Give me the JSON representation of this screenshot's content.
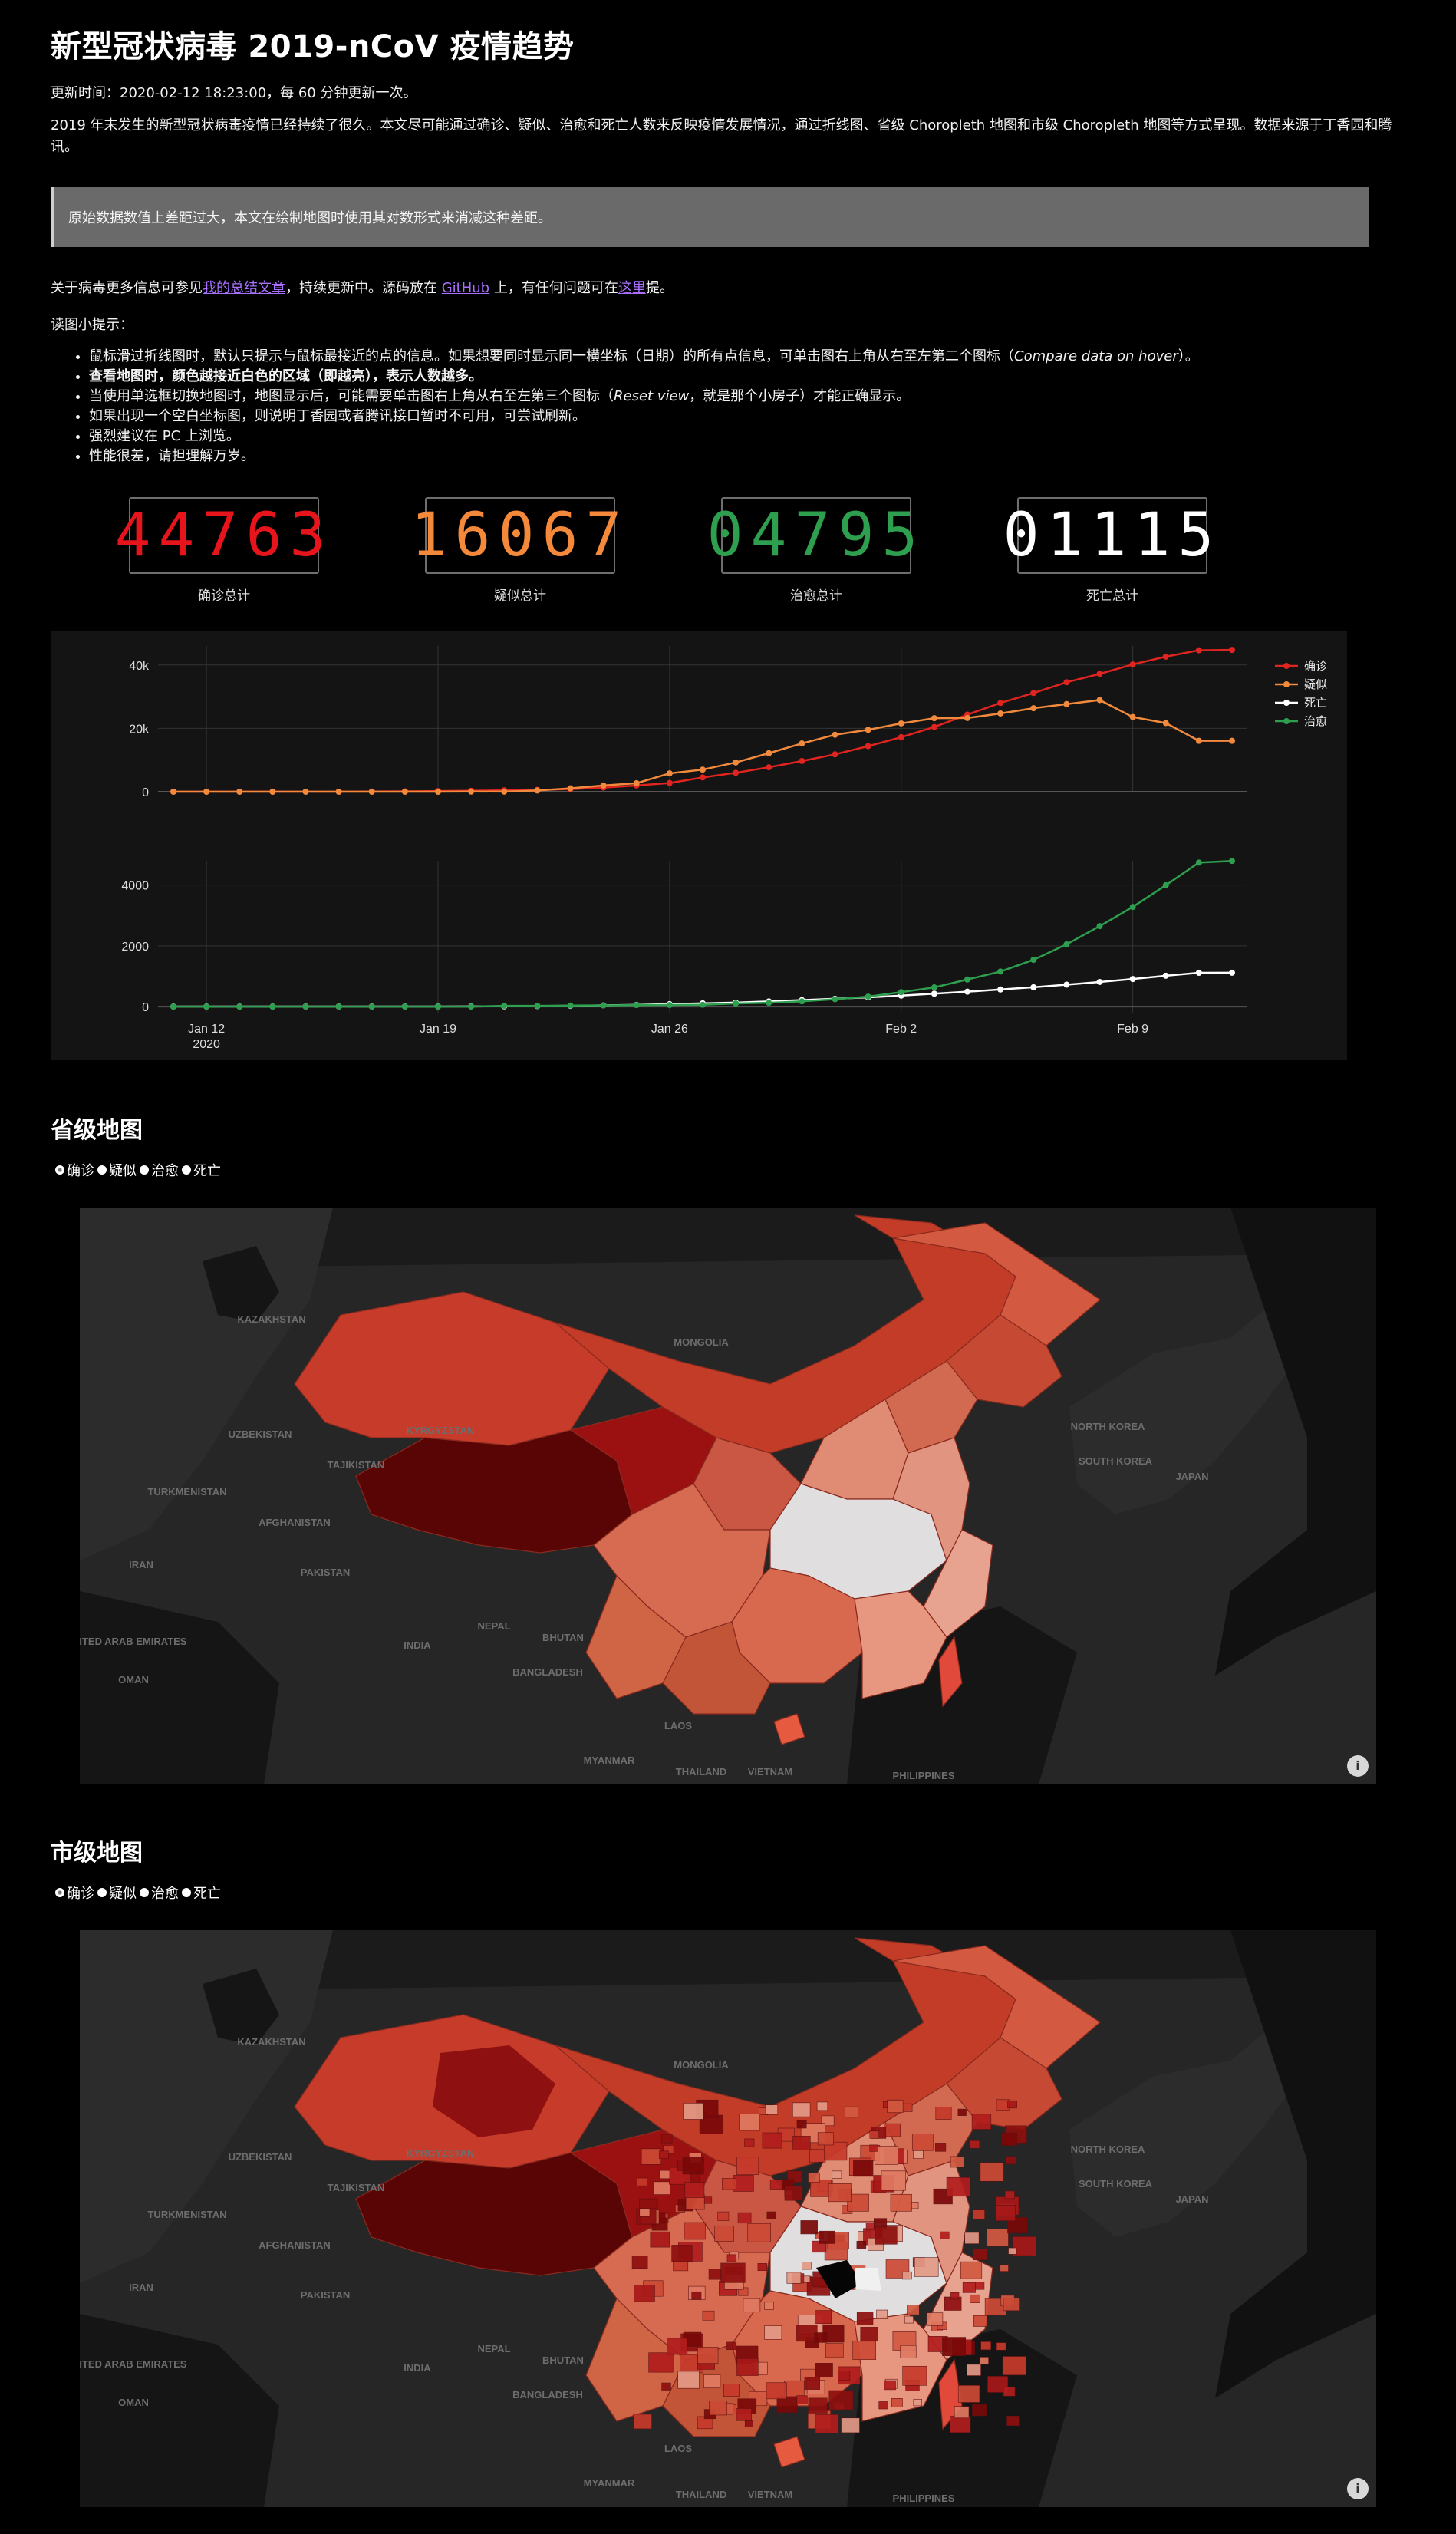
{
  "title": "新型冠状病毒 2019-nCoV 疫情趋势",
  "update": "更新时间：2020-02-12 18:23:00，每 60 分钟更新一次。",
  "intro": "2019 年末发生的新型冠状病毒疫情已经持续了很久。本文尽可能通过确诊、疑似、治愈和死亡人数来反映疫情发展情况，通过折线图、省级 Choropleth 地图和市级 Choropleth 地图等方式呈现。数据来源于丁香园和腾讯。",
  "quote": "原始数据数值上差距过大，本文在绘制地图时使用其对数形式来消减这种差距。",
  "about": {
    "pre": "关于病毒更多信息可参见",
    "link1": "我的总结文章",
    "mid": "，持续更新中。源码放在 ",
    "link2": "GitHub",
    "mid2": " 上，有任何问题可在",
    "link3": "这里",
    "post": "提。"
  },
  "tips_title": "读图小提示：",
  "tips": [
    {
      "a": "鼠标滑过折线图时，默认只提示与鼠标最接近的点的信息。如果想要同时显示同一横坐标（日期）的所有点信息，可单击图右上角从右至左第二个图标（",
      "em": "Compare data on hover",
      "b": "）。"
    },
    {
      "a": "查看地图时，颜色越接近白色的区域（即越亮），表示人数越多。",
      "em": "",
      "b": ""
    },
    {
      "a": "当使用单选框切换地图时，地图显示后，可能需要单击图右上角从右至左第三个图标（",
      "em": "Reset view",
      "b": "，就是那个小房子）才能正确显示。"
    },
    {
      "a": "如果出现一个空白坐标图，则说明丁香园或者腾讯接口暂时不可用，可尝试刷新。",
      "em": "",
      "b": ""
    },
    {
      "a": "强烈建议在 PC 上浏览。",
      "em": "",
      "b": ""
    },
    {
      "a": "性能很差，",
      "em": "",
      "strike": "请担",
      "b": "理解万岁。"
    }
  ],
  "counters": [
    {
      "value": "44763",
      "label": "确诊总计",
      "color": "#e8141b"
    },
    {
      "value": "16067",
      "label": "疑似总计",
      "color": "#f5893b"
    },
    {
      "value": "04795",
      "label": "治愈总计",
      "color": "#2e9e4f"
    },
    {
      "value": "01115",
      "label": "死亡总计",
      "color": "#ffffff"
    }
  ],
  "chart_data": {
    "type": "line",
    "x": [
      "2020-01-11",
      "2020-01-12",
      "2020-01-13",
      "2020-01-14",
      "2020-01-15",
      "2020-01-16",
      "2020-01-17",
      "2020-01-18",
      "2020-01-19",
      "2020-01-20",
      "2020-01-21",
      "2020-01-22",
      "2020-01-23",
      "2020-01-24",
      "2020-01-25",
      "2020-01-26",
      "2020-01-27",
      "2020-01-28",
      "2020-01-29",
      "2020-01-30",
      "2020-01-31",
      "2020-02-01",
      "2020-02-02",
      "2020-02-03",
      "2020-02-04",
      "2020-02-05",
      "2020-02-06",
      "2020-02-07",
      "2020-02-08",
      "2020-02-09",
      "2020-02-10",
      "2020-02-11",
      "2020-02-12"
    ],
    "xticks": [
      {
        "x": "2020-01-12",
        "label": "Jan 12",
        "sub": "2020"
      },
      {
        "x": "2020-01-19",
        "label": "Jan 19"
      },
      {
        "x": "2020-01-26",
        "label": "Jan 26"
      },
      {
        "x": "2020-02-02",
        "label": "Feb 2"
      },
      {
        "x": "2020-02-09",
        "label": "Feb 9"
      }
    ],
    "colors": {
      "确诊": "#e0241f",
      "疑似": "#f28a3d",
      "死亡": "#ffffff",
      "治愈": "#2e9e4f"
    },
    "legend_placement": "top-right",
    "top": {
      "ylim": [
        0,
        46000
      ],
      "yticks": [
        0,
        20000,
        40000
      ],
      "yticklabels": [
        "0",
        "20k",
        "40k"
      ],
      "series": [
        {
          "name": "确诊",
          "values": [
            41,
            41,
            41,
            41,
            41,
            45,
            62,
            121,
            198,
            291,
            440,
            571,
            830,
            1287,
            1975,
            2744,
            4515,
            5974,
            7711,
            9692,
            11791,
            14380,
            17205,
            20438,
            24324,
            28018,
            31161,
            34546,
            37198,
            40171,
            42638,
            44653,
            44763
          ]
        },
        {
          "name": "疑似",
          "values": [
            0,
            0,
            0,
            0,
            0,
            0,
            0,
            0,
            0,
            54,
            37,
            393,
            1072,
            1965,
            2684,
            5794,
            6973,
            9239,
            12167,
            15238,
            17988,
            19544,
            21558,
            23214,
            23260,
            24702,
            26359,
            27657,
            28942,
            23589,
            21675,
            16067,
            16067
          ]
        }
      ]
    },
    "bottom": {
      "ylim": [
        -200,
        4800
      ],
      "yticks": [
        0,
        2000,
        4000
      ],
      "yticklabels": [
        "0",
        "2000",
        "4000"
      ],
      "series": [
        {
          "name": "死亡",
          "values": [
            1,
            1,
            1,
            1,
            2,
            2,
            2,
            3,
            3,
            6,
            9,
            17,
            25,
            41,
            56,
            80,
            106,
            132,
            170,
            213,
            259,
            304,
            361,
            425,
            490,
            563,
            636,
            722,
            811,
            908,
            1016,
            1113,
            1115
          ]
        },
        {
          "name": "治愈",
          "values": [
            0,
            0,
            0,
            0,
            0,
            0,
            0,
            0,
            0,
            0,
            25,
            25,
            34,
            38,
            49,
            51,
            60,
            103,
            124,
            171,
            243,
            328,
            475,
            632,
            892,
            1153,
            1540,
            2050,
            2649,
            3281,
            3996,
            4740,
            4795
          ]
        }
      ]
    }
  },
  "province": {
    "title": "省级地图",
    "options": [
      "确诊",
      "疑似",
      "治愈",
      "死亡"
    ],
    "selected": "确诊"
  },
  "city": {
    "title": "市级地图",
    "options": [
      "确诊",
      "疑似",
      "治愈",
      "死亡"
    ],
    "selected": "确诊"
  },
  "map_labels": [
    "KAZAKHSTAN",
    "MONGOLIA",
    "UZBEKISTAN",
    "KYRGYZSTAN",
    "TURKMENISTAN",
    "TAJIKISTAN",
    "AFGHANISTAN",
    "IRAN",
    "PAKISTAN",
    "INDIA",
    "NEPAL",
    "BHUTAN",
    "BANGLADESH",
    "MYANMAR",
    "THAILAND",
    "LAOS",
    "VIETNAM",
    "PHILIPPINES",
    "SOUTH KOREA",
    "NORTH KOREA",
    "JAPAN",
    "UNITED ARAB EMIRATES",
    "OMAN"
  ],
  "map_info": "i"
}
